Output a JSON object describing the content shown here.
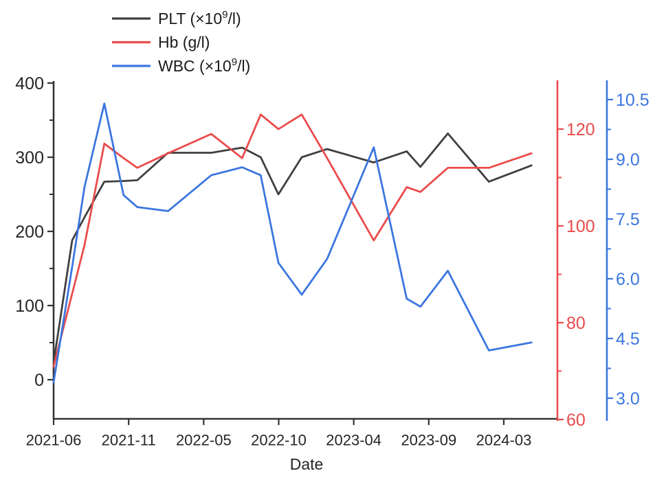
{
  "chart_data": {
    "type": "line",
    "title": "",
    "xlabel": "Date",
    "legend_position": "top-left",
    "grid": false,
    "background": "#ffffff",
    "x_axis": {
      "color": "#333333",
      "label_color": "#262626",
      "ticks": [
        {
          "m": 0.0,
          "label": "2021-06"
        },
        {
          "m": 5.5,
          "label": "2021-11"
        },
        {
          "m": 11.0,
          "label": "2022-05"
        },
        {
          "m": 16.5,
          "label": "2022-10"
        },
        {
          "m": 22.0,
          "label": "2023-04"
        },
        {
          "m": 27.5,
          "label": "2023-09"
        },
        {
          "m": 33.0,
          "label": "2024-03"
        }
      ]
    },
    "y_axes": {
      "plt": {
        "side": "left",
        "color": "#333333",
        "label_color": "#262626",
        "range": [
          0,
          400
        ],
        "ticks": [
          {
            "v": 400,
            "label": "400"
          },
          {
            "v": 300,
            "label": "300"
          },
          {
            "v": 200,
            "label": "200"
          },
          {
            "v": 100,
            "label": "100"
          },
          {
            "v": 0,
            "label": "0"
          }
        ],
        "minor": [
          350,
          250,
          150,
          50
        ]
      },
      "hb": {
        "side": "right",
        "color": "#ea4b4b",
        "label_color": "#ea4b4b",
        "range": [
          60,
          130
        ],
        "ticks": [
          {
            "v": 120,
            "label": "120"
          },
          {
            "v": 100,
            "label": "100"
          },
          {
            "v": 80,
            "label": "80"
          },
          {
            "v": 60,
            "label": "60"
          }
        ],
        "minor": [
          110,
          90,
          70
        ]
      },
      "wbc": {
        "side": "far-right",
        "color": "#3b76e0",
        "label_color": "#3b76e0",
        "range": [
          2.5,
          11.0
        ],
        "ticks": [
          {
            "v": 10.5,
            "label": "10.5"
          },
          {
            "v": 9.0,
            "label": "9.0"
          },
          {
            "v": 7.5,
            "label": "7.5"
          },
          {
            "v": 6.0,
            "label": "6.0"
          },
          {
            "v": 4.5,
            "label": "4.5"
          },
          {
            "v": 3.0,
            "label": "3.0"
          }
        ],
        "minor": [
          9.75,
          8.25,
          6.75,
          5.25,
          3.75
        ]
      }
    },
    "points": {
      "dates": [
        "2021-06",
        "2021-07",
        "2021-08",
        "2021-09",
        "2021-11",
        "2021-12",
        "2022-02",
        "2022-05",
        "2022-07",
        "2022-09",
        "2022-10",
        "2022-12",
        "2023-02",
        "2023-05",
        "2023-08",
        "2023-09",
        "2023-11",
        "2024-02",
        "2024-05"
      ],
      "t_months": [
        0,
        1.36,
        2.26,
        3.72,
        5.13,
        6.13,
        8.39,
        11.56,
        13.82,
        15.18,
        16.48,
        18.19,
        20.05,
        23.47,
        25.88,
        26.89,
        28.9,
        31.91,
        35.03
      ]
    },
    "series": [
      {
        "name": "PLT (×10⁹/l)",
        "label_parts": {
          "pre": "PLT (×10",
          "sup": "9",
          "post": "/l)"
        },
        "axis": "plt",
        "color": "#3f3f3f",
        "values": [
          23,
          188,
          219,
          267,
          268,
          269,
          306,
          306,
          313,
          300,
          250,
          300,
          311,
          293,
          308,
          287,
          332,
          267,
          289
        ]
      },
      {
        "name": "Hb (g/l)",
        "label_parts": {
          "pre": "Hb (g/l)",
          "sup": "",
          "post": ""
        },
        "axis": "hb",
        "color": "#ea4b4b",
        "values": [
          71,
          86,
          96,
          117,
          114,
          112,
          115,
          119,
          114,
          123,
          120,
          123,
          114,
          97,
          108,
          107,
          112,
          112,
          115
        ]
      },
      {
        "name": "WBC (×10⁹/l)",
        "label_parts": {
          "pre": "WBC (×10",
          "sup": "9",
          "post": "/l)"
        },
        "axis": "wbc",
        "color": "#3b76e0",
        "values": [
          3.4,
          6.3,
          8.3,
          10.4,
          8.1,
          7.8,
          7.7,
          8.6,
          8.8,
          8.6,
          6.4,
          5.6,
          6.5,
          9.3,
          5.5,
          5.3,
          6.2,
          4.2,
          4.4
        ]
      }
    ]
  }
}
